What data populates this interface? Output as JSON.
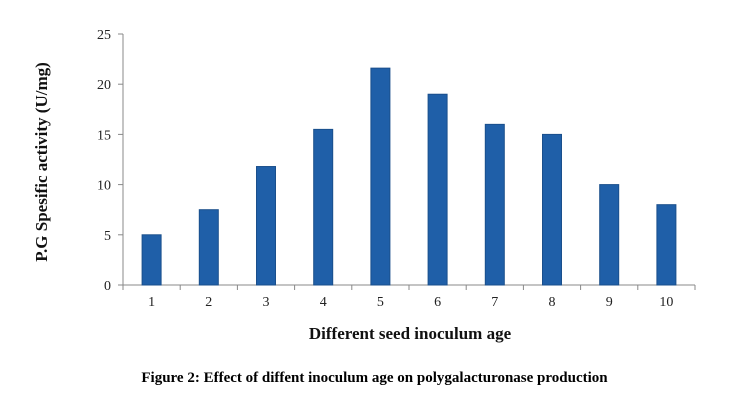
{
  "chart_data": {
    "type": "bar",
    "title": "",
    "xlabel": "Different seed inoculum age",
    "ylabel": "P.G Spesific activity (U/mg)",
    "categories": [
      "1",
      "2",
      "3",
      "4",
      "5",
      "6",
      "7",
      "8",
      "9",
      "10"
    ],
    "values": [
      5,
      7.5,
      11.8,
      15.5,
      21.6,
      19,
      16,
      15,
      10,
      8
    ],
    "ylim": [
      0,
      25
    ],
    "yticks": [
      "0",
      "5",
      "10",
      "15",
      "20",
      "25"
    ],
    "grid": false,
    "legend": "none",
    "bar_color": "#1f5fa8",
    "bar_edge_color": "#1a4f8c"
  },
  "caption": "Figure 2: Effect of diffent inoculum age on polygalacturonase production"
}
